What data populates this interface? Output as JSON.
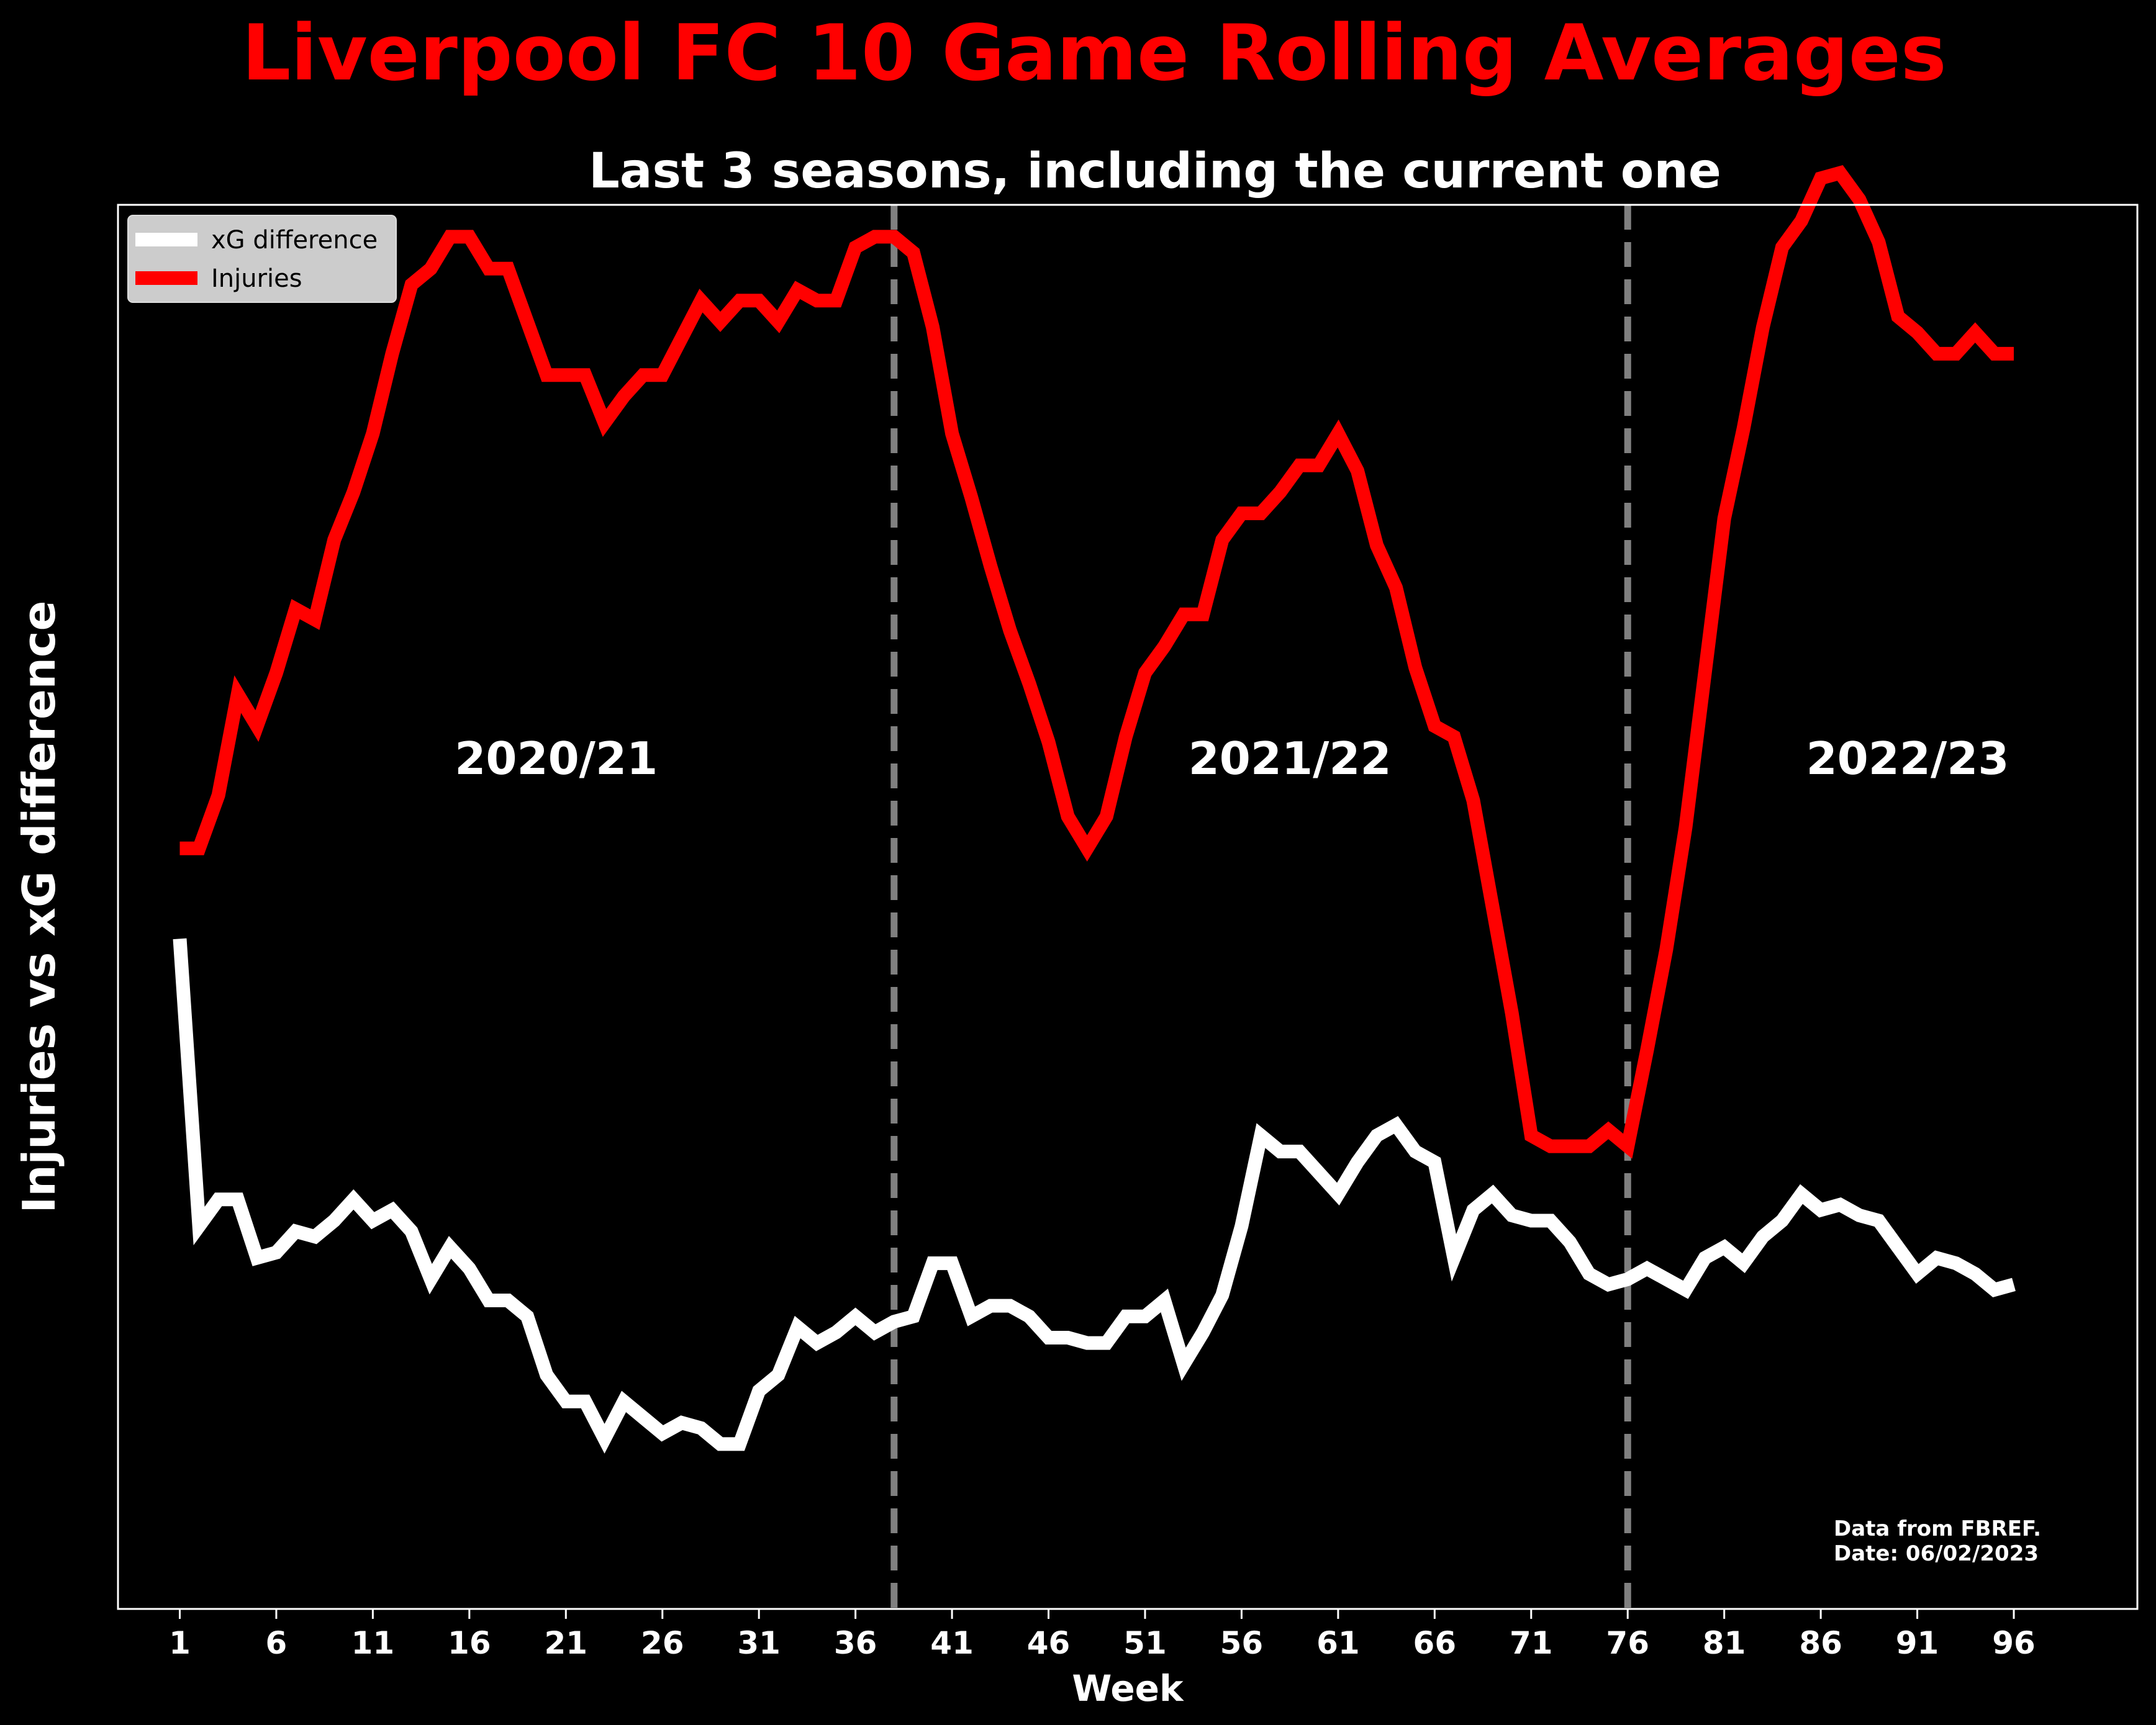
{
  "chart_data": {
    "type": "line",
    "title": "Liverpool FC 10 Game Rolling Averages",
    "subtitle": "Last 3 seasons, including the current one",
    "xlabel": "Week",
    "ylabel": "Injuries vs xG difference",
    "xlim": [
      -2.2,
      102.4
    ],
    "ylim": [
      -1.6,
      1.04
    ],
    "x_ticks": [
      1,
      6,
      11,
      16,
      21,
      26,
      31,
      36,
      41,
      46,
      51,
      56,
      61,
      66,
      71,
      76,
      81,
      86,
      91,
      96
    ],
    "y_ticks_visible": false,
    "grid": false,
    "legend": {
      "placement": "top-left"
    },
    "season_dividers": [
      38,
      76
    ],
    "season_labels": [
      {
        "text": "2020/21",
        "x": 20.5,
        "y": 0.0
      },
      {
        "text": "2021/22",
        "x": 58.5,
        "y": 0.0
      },
      {
        "text": "2022/23",
        "x": 90.5,
        "y": 0.0
      }
    ],
    "annotation": {
      "lines": [
        "Data from FBREF.",
        "Date: 06/02/2023"
      ]
    },
    "series": [
      {
        "name": "xG difference",
        "color": "#ffffff",
        "x": [
          1,
          2,
          3,
          4,
          5,
          6,
          7,
          8,
          9,
          10,
          11,
          12,
          13,
          14,
          15,
          16,
          17,
          18,
          19,
          20,
          21,
          22,
          23,
          24,
          25,
          26,
          27,
          28,
          29,
          30,
          31,
          32,
          33,
          34,
          35,
          36,
          37,
          38,
          39,
          40,
          41,
          42,
          43,
          44,
          45,
          46,
          47,
          48,
          49,
          50,
          51,
          52,
          53,
          54,
          55,
          56,
          57,
          58,
          59,
          60,
          61,
          62,
          63,
          64,
          65,
          66,
          67,
          68,
          69,
          70,
          71,
          72,
          73,
          74,
          75,
          76,
          77,
          78,
          79,
          80,
          81,
          82,
          83,
          84,
          85,
          86,
          87,
          88,
          89,
          90,
          91,
          92,
          93,
          94,
          95,
          96
        ],
        "values": [
          -0.34,
          -0.88,
          -0.83,
          -0.83,
          -0.94,
          -0.93,
          -0.89,
          -0.9,
          -0.87,
          -0.83,
          -0.87,
          -0.85,
          -0.89,
          -0.98,
          -0.92,
          -0.96,
          -1.02,
          -1.02,
          -1.05,
          -1.16,
          -1.21,
          -1.21,
          -1.28,
          -1.21,
          -1.24,
          -1.27,
          -1.25,
          -1.26,
          -1.29,
          -1.29,
          -1.19,
          -1.16,
          -1.07,
          -1.1,
          -1.08,
          -1.05,
          -1.08,
          -1.06,
          -1.05,
          -0.95,
          -0.95,
          -1.05,
          -1.03,
          -1.03,
          -1.05,
          -1.09,
          -1.09,
          -1.1,
          -1.1,
          -1.05,
          -1.05,
          -1.02,
          -1.14,
          -1.08,
          -1.01,
          -0.88,
          -0.71,
          -0.74,
          -0.74,
          -0.78,
          -0.82,
          -0.76,
          -0.71,
          -0.69,
          -0.74,
          -0.76,
          -0.94,
          -0.85,
          -0.82,
          -0.86,
          -0.87,
          -0.87,
          -0.91,
          -0.97,
          -0.99,
          -0.98,
          -0.96,
          -0.98,
          -1.0,
          -0.94,
          -0.92,
          -0.95,
          -0.9,
          -0.87,
          -0.82,
          -0.85,
          -0.84,
          -0.86,
          -0.87,
          -0.92,
          -0.97,
          -0.94,
          -0.95,
          -0.97,
          -1.0,
          -0.99
        ]
      },
      {
        "name": "Injuries",
        "color": "#ff0000",
        "x": [
          1,
          2,
          3,
          4,
          5,
          6,
          7,
          8,
          9,
          10,
          11,
          12,
          13,
          14,
          15,
          16,
          17,
          18,
          19,
          20,
          21,
          22,
          23,
          24,
          25,
          26,
          27,
          28,
          29,
          30,
          31,
          32,
          33,
          34,
          35,
          36,
          37,
          38,
          39,
          40,
          41,
          42,
          43,
          44,
          45,
          46,
          47,
          48,
          49,
          50,
          51,
          52,
          53,
          54,
          55,
          56,
          57,
          58,
          59,
          60,
          61,
          62,
          63,
          64,
          65,
          66,
          67,
          68,
          69,
          70,
          71,
          72,
          73,
          74,
          75,
          76,
          77,
          78,
          79,
          80,
          81,
          82,
          83,
          84,
          85,
          86,
          87,
          88,
          89,
          90,
          91,
          92,
          93,
          94,
          95,
          96
        ],
        "values": [
          -0.17,
          -0.17,
          -0.07,
          0.12,
          0.06,
          0.16,
          0.28,
          0.26,
          0.41,
          0.5,
          0.61,
          0.76,
          0.89,
          0.92,
          0.98,
          0.98,
          0.92,
          0.92,
          0.82,
          0.72,
          0.72,
          0.72,
          0.63,
          0.68,
          0.72,
          0.72,
          0.79,
          0.86,
          0.82,
          0.86,
          0.86,
          0.82,
          0.88,
          0.86,
          0.86,
          0.96,
          0.98,
          0.98,
          0.95,
          0.81,
          0.61,
          0.49,
          0.36,
          0.24,
          0.14,
          0.03,
          -0.11,
          -0.17,
          -0.11,
          0.04,
          0.16,
          0.21,
          0.27,
          0.27,
          0.41,
          0.46,
          0.46,
          0.5,
          0.55,
          0.55,
          0.61,
          0.54,
          0.4,
          0.32,
          0.17,
          0.06,
          0.04,
          -0.08,
          -0.28,
          -0.48,
          -0.71,
          -0.73,
          -0.73,
          -0.73,
          -0.7,
          -0.73,
          -0.55,
          -0.36,
          -0.13,
          0.16,
          0.45,
          0.62,
          0.81,
          0.96,
          1.01,
          1.09,
          1.1,
          1.05,
          0.97,
          0.83,
          0.8,
          0.76,
          0.76,
          0.8,
          0.76,
          0.76
        ]
      }
    ]
  }
}
